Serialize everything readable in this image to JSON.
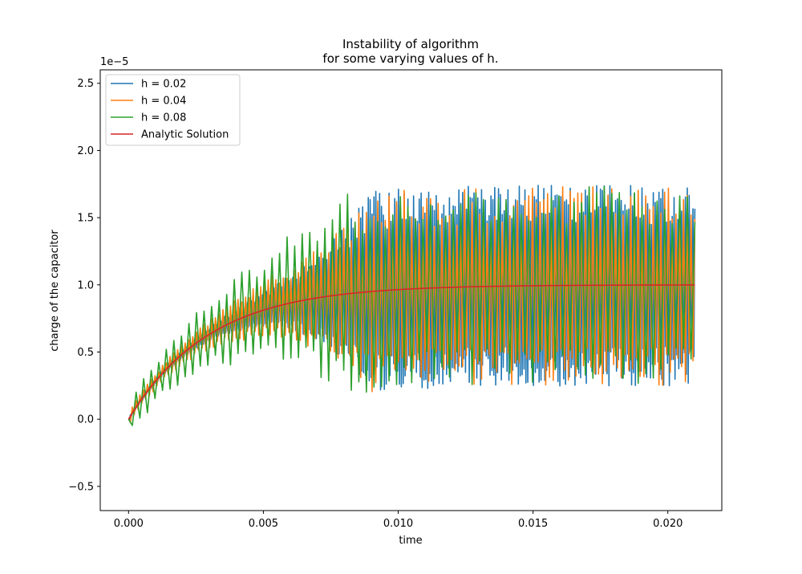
{
  "chart_data": {
    "type": "line",
    "title_lines": [
      "Instability of algorithm",
      "for some varying values of h."
    ],
    "xlabel": "time",
    "ylabel": "charge of the capacitor",
    "y_offset_label": "1e−5",
    "xlim": [
      -0.00105,
      0.022
    ],
    "ylim": [
      -0.68,
      2.6
    ],
    "xticks": [
      0.0,
      0.005,
      0.01,
      0.015,
      0.02
    ],
    "xtick_labels": [
      "0.000",
      "0.005",
      "0.010",
      "0.015",
      "0.020"
    ],
    "yticks": [
      -0.5,
      0.0,
      0.5,
      1.0,
      1.5,
      2.0,
      2.5
    ],
    "ytick_labels": [
      "−0.5",
      "0.0",
      "0.5",
      "1.0",
      "1.5",
      "2.0",
      "2.5"
    ],
    "grid": false,
    "legend_position": "top-left",
    "series": [
      {
        "name": "h = 0.02",
        "color": "#1f77b4",
        "h": 0.02,
        "steps": 600
      },
      {
        "name": "h = 0.04",
        "color": "#ff7f0e",
        "h": 0.04,
        "steps": 300
      },
      {
        "name": "h = 0.08",
        "color": "#2ca02c",
        "h": 0.08,
        "steps": 150
      },
      {
        "name": "Analytic Solution",
        "color": "#d62728",
        "analytic": true,
        "steps": 300
      }
    ]
  }
}
